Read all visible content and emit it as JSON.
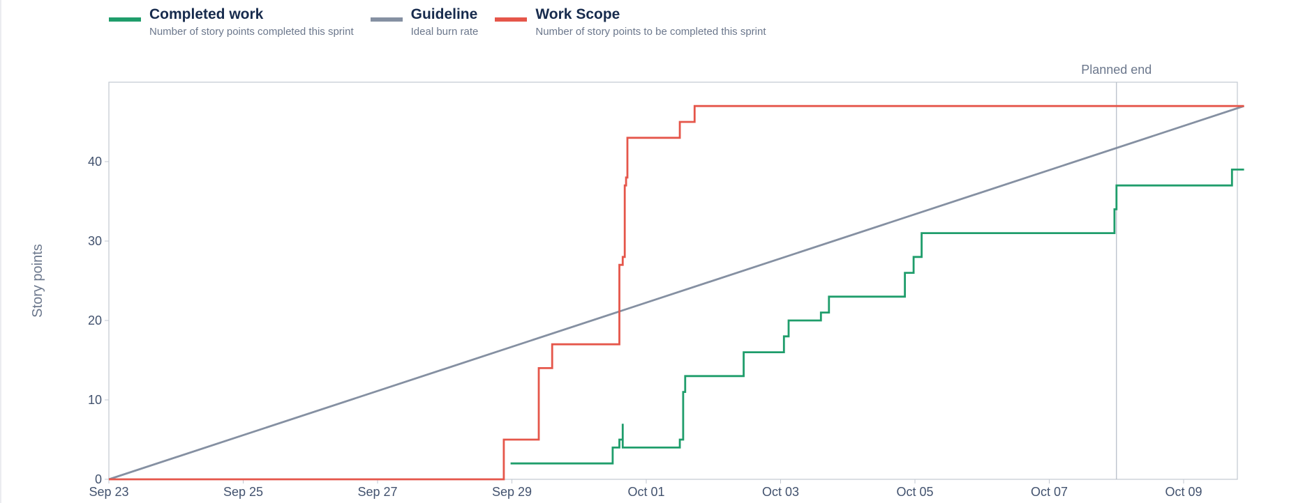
{
  "legend": [
    {
      "label": "Completed work",
      "description": "Number of story points completed this sprint",
      "color": "#1f9d6b"
    },
    {
      "label": "Guideline",
      "description": "Ideal burn rate",
      "color": "#8590a2"
    },
    {
      "label": "Work Scope",
      "description": "Number of story points to be completed this sprint",
      "color": "#e5564a"
    }
  ],
  "chart_data": {
    "type": "line",
    "title": "",
    "xlabel": "",
    "ylabel": "Story points",
    "x_unit": "days (0 = Sep 23 00:00)",
    "xlim": [
      0,
      16.8
    ],
    "ylim": [
      0,
      50
    ],
    "yticks": [
      0,
      10,
      20,
      30,
      40
    ],
    "xticks": [
      {
        "x": 0,
        "label": "Sep 23"
      },
      {
        "x": 2,
        "label": "Sep 25"
      },
      {
        "x": 4,
        "label": "Sep 27"
      },
      {
        "x": 6,
        "label": "Sep 29"
      },
      {
        "x": 8,
        "label": "Oct 01"
      },
      {
        "x": 10,
        "label": "Oct 03"
      },
      {
        "x": 12,
        "label": "Oct 05"
      },
      {
        "x": 14,
        "label": "Oct 07"
      },
      {
        "x": 16,
        "label": "Oct 09"
      }
    ],
    "grid": false,
    "legend_position": "top-left",
    "annotations": [
      {
        "label": "Planned end",
        "x": 15.0
      }
    ],
    "series": [
      {
        "name": "Completed work",
        "color": "#1f9d6b",
        "step": true,
        "points": [
          [
            5.98,
            2
          ],
          [
            7.5,
            2
          ],
          [
            7.5,
            4
          ],
          [
            7.6,
            4
          ],
          [
            7.6,
            5
          ],
          [
            7.65,
            5
          ],
          [
            7.65,
            7
          ],
          [
            7.65,
            4
          ],
          [
            8.5,
            4
          ],
          [
            8.5,
            5
          ],
          [
            8.55,
            5
          ],
          [
            8.55,
            11
          ],
          [
            8.58,
            11
          ],
          [
            8.58,
            13
          ],
          [
            9.45,
            13
          ],
          [
            9.45,
            16
          ],
          [
            10.05,
            16
          ],
          [
            10.05,
            18
          ],
          [
            10.12,
            18
          ],
          [
            10.12,
            20
          ],
          [
            10.6,
            20
          ],
          [
            10.6,
            21
          ],
          [
            10.72,
            21
          ],
          [
            10.72,
            23
          ],
          [
            11.85,
            23
          ],
          [
            11.85,
            26
          ],
          [
            11.98,
            26
          ],
          [
            11.98,
            28
          ],
          [
            12.1,
            28
          ],
          [
            12.1,
            31
          ],
          [
            14.97,
            31
          ],
          [
            14.97,
            34
          ],
          [
            15.0,
            34
          ],
          [
            15.0,
            37
          ],
          [
            16.72,
            37
          ],
          [
            16.72,
            39
          ],
          [
            16.9,
            39
          ]
        ]
      },
      {
        "name": "Guideline",
        "color": "#8590a2",
        "step": false,
        "points": [
          [
            0,
            0
          ],
          [
            16.9,
            47
          ]
        ]
      },
      {
        "name": "Work Scope",
        "color": "#e5564a",
        "step": true,
        "points": [
          [
            0,
            0
          ],
          [
            5.88,
            0
          ],
          [
            5.88,
            5
          ],
          [
            6.4,
            5
          ],
          [
            6.4,
            14
          ],
          [
            6.6,
            14
          ],
          [
            6.6,
            17
          ],
          [
            7.6,
            17
          ],
          [
            7.6,
            27
          ],
          [
            7.65,
            27
          ],
          [
            7.65,
            28
          ],
          [
            7.68,
            28
          ],
          [
            7.68,
            37
          ],
          [
            7.7,
            37
          ],
          [
            7.7,
            38
          ],
          [
            7.72,
            38
          ],
          [
            7.72,
            43
          ],
          [
            8.5,
            43
          ],
          [
            8.5,
            45
          ],
          [
            8.72,
            45
          ],
          [
            8.72,
            47
          ],
          [
            16.9,
            47
          ]
        ]
      }
    ]
  }
}
